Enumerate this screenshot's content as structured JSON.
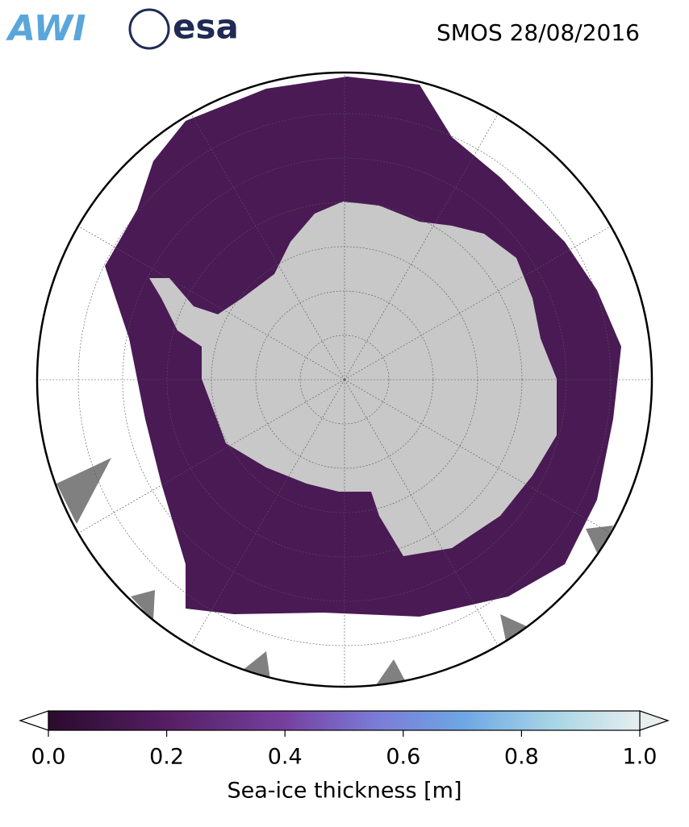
{
  "logos": [
    "AWI",
    "esa"
  ],
  "title": "SMOS 28/08/2016",
  "colorbar": {
    "label": "Sea-ice thickness [m]",
    "lim": [
      0,
      1
    ],
    "ticks": [
      {
        "value": 0,
        "label": "0.0"
      },
      0.2,
      0.4,
      0.6,
      0.8,
      {
        "value": 1,
        "label": "1.0"
      }
    ]
  }
}
